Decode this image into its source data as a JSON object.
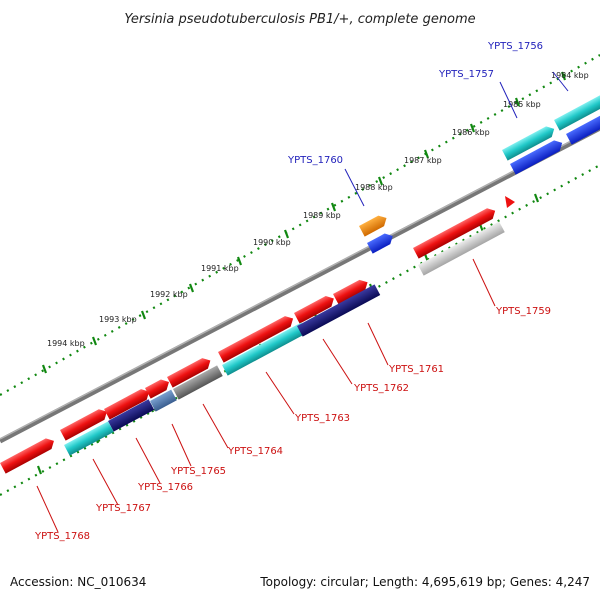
{
  "title": "Yersinia pseudotuberculosis PB1/+, complete genome",
  "footer": {
    "accession": "Accession: NC_010634",
    "topology": "Topology: circular; Length: 4,695,619 bp; Genes: 4,247"
  },
  "scale_labels": [
    "1984 kbp",
    "1985 kbp",
    "1986 kbp",
    "1987 kbp",
    "1988 kbp",
    "1989 kbp",
    "1990 kbp",
    "1991 kbp",
    "1992 kbp",
    "1993 kbp",
    "1994 kbp"
  ],
  "top_labels": [
    "YPTS_1756",
    "YPTS_1757",
    "YPTS_1760"
  ],
  "bottom_labels": [
    "YPTS_1759",
    "YPTS_1761",
    "YPTS_1762",
    "YPTS_1763",
    "YPTS_1764",
    "YPTS_1765",
    "YPTS_1766",
    "YPTS_1767",
    "YPTS_1768"
  ],
  "colors": {
    "red": "#ee1111",
    "cyan": "#20c8c8",
    "navy": "#101070",
    "blue": "#1030e0",
    "orange": "#f08000",
    "grey": "#888888",
    "light_grey": "#bbbbbb",
    "tick_green": "#118811",
    "label_blue": "#2222bb",
    "label_red": "#cc1111"
  }
}
